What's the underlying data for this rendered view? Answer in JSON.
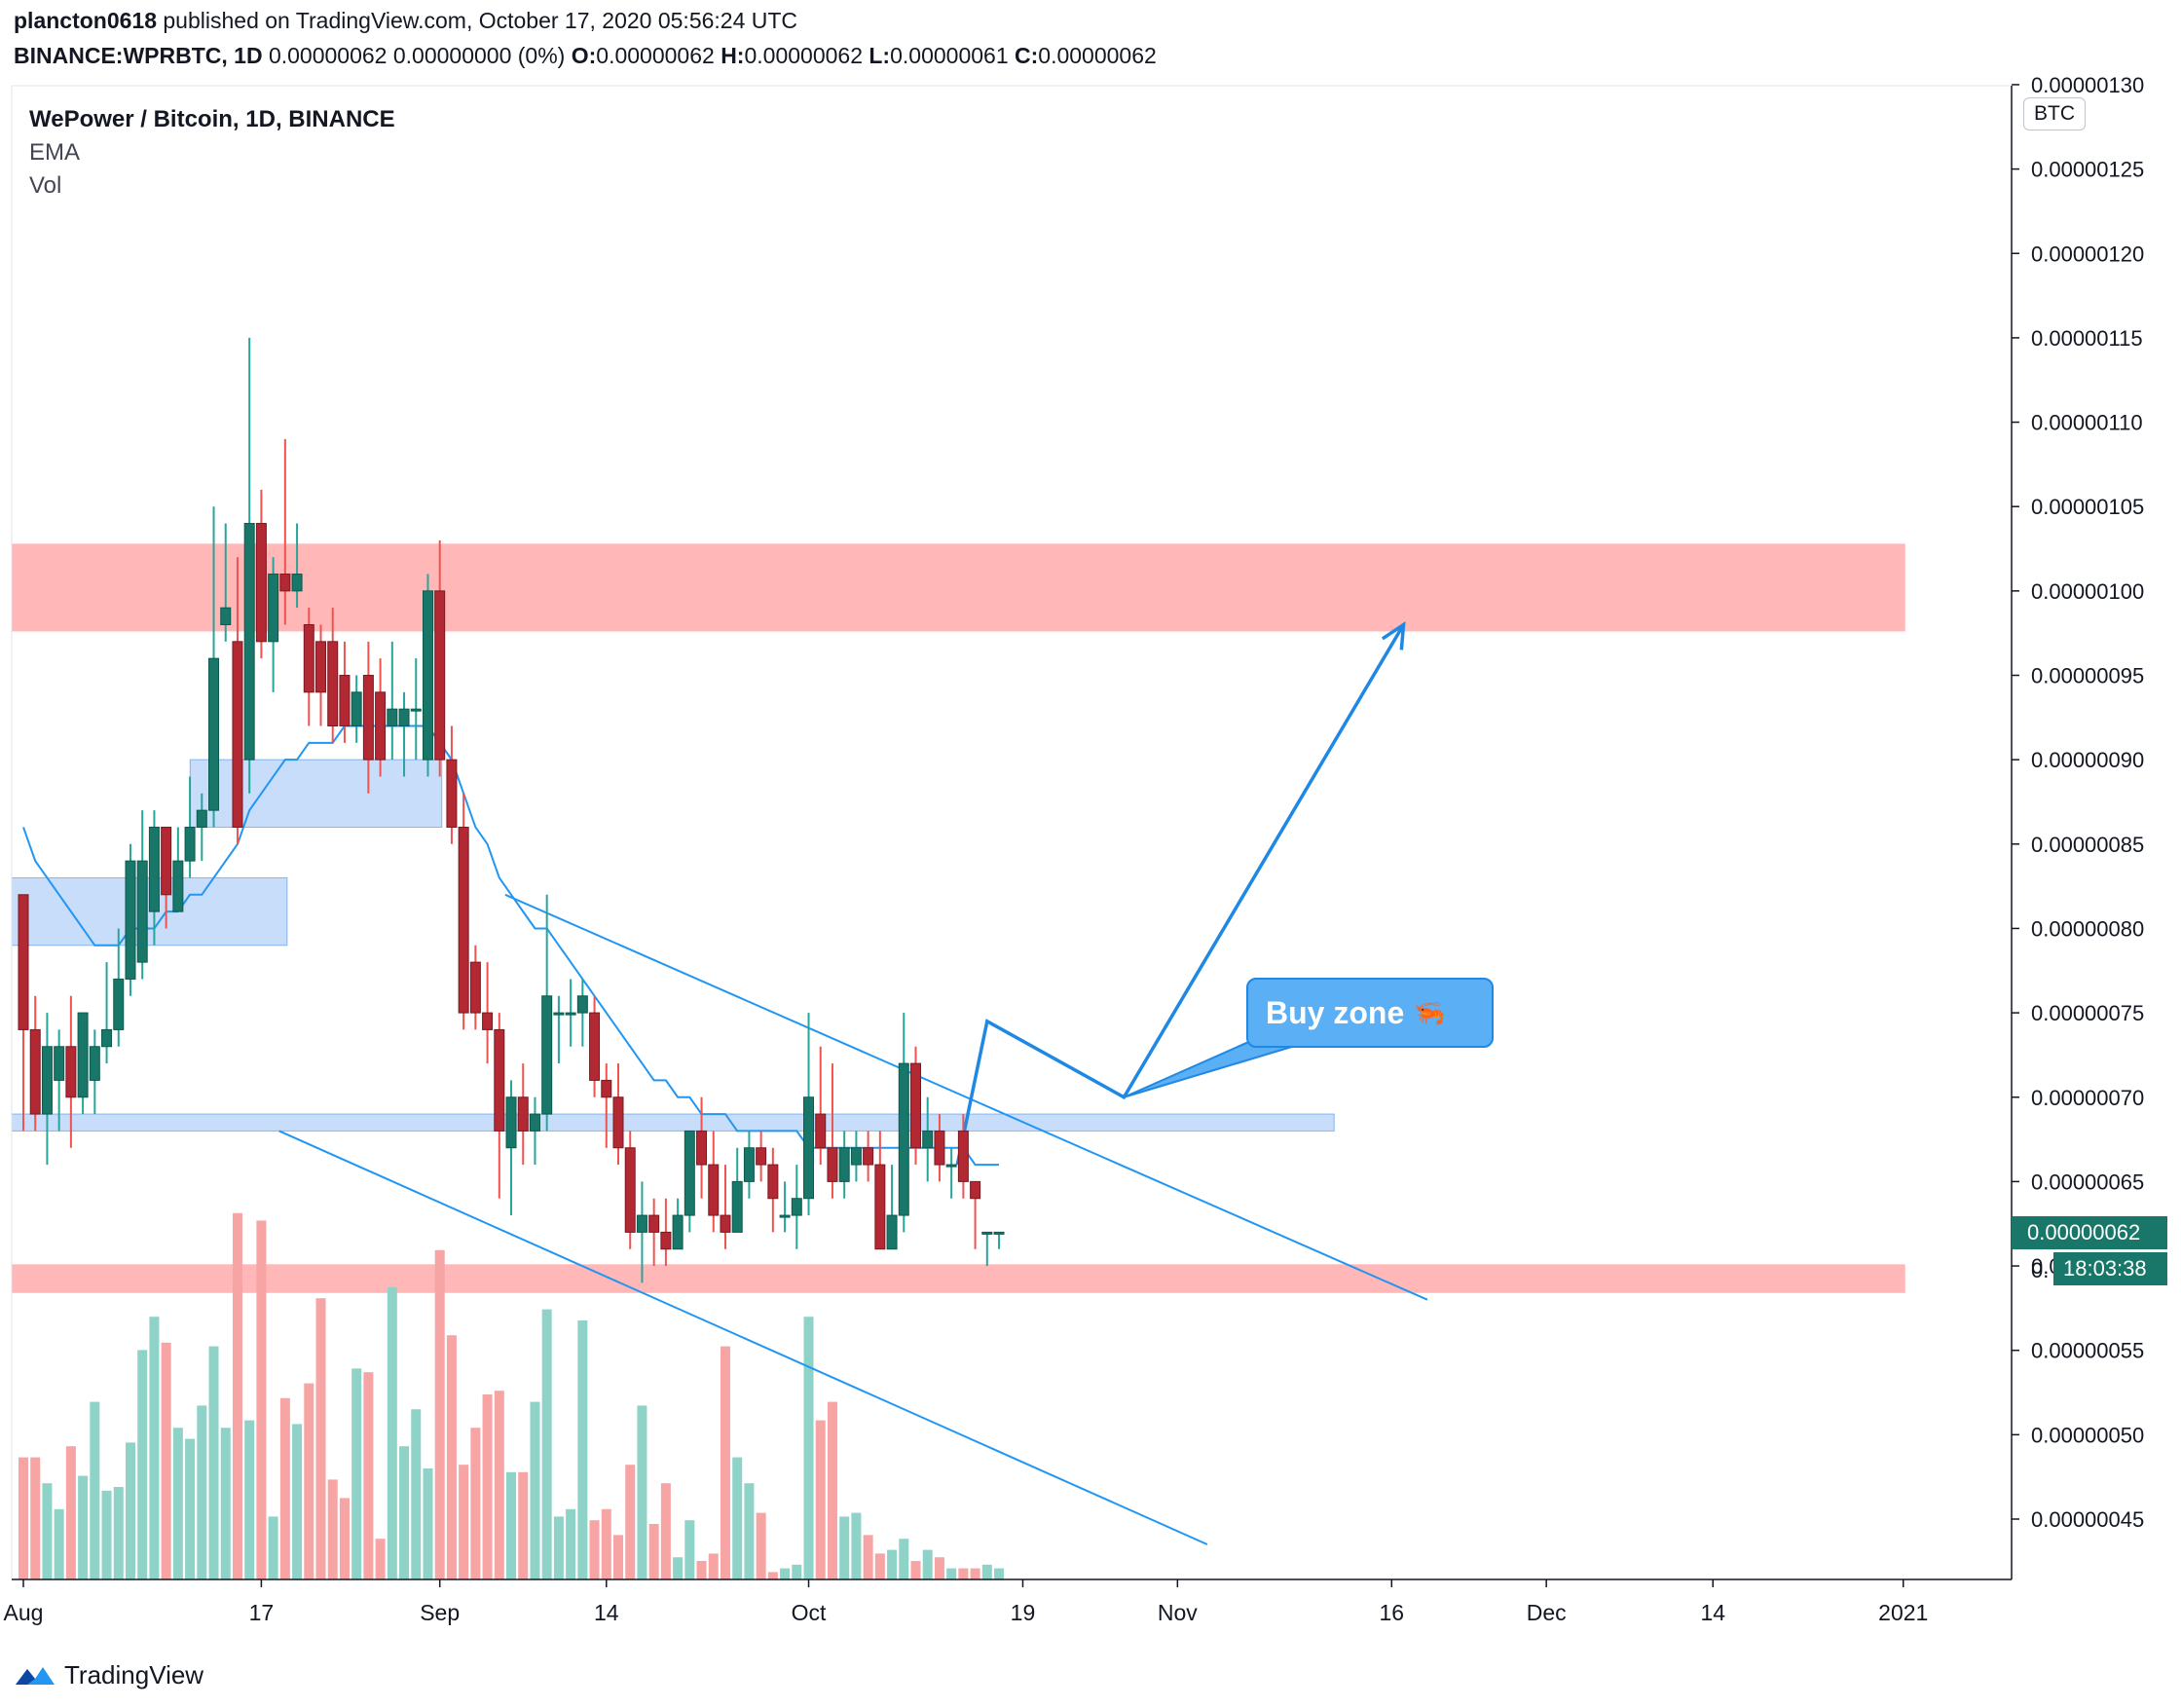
{
  "header": {
    "author": "plancton0618",
    "published_text": "published on TradingView.com, October 17, 2020 05:56:24 UTC",
    "symbol": "BINANCE:WPRBTC, 1D",
    "quote": "0.00000062 0.00000000 (0%)",
    "o_label": "O:",
    "o_value": "0.00000062",
    "h_label": "H:",
    "h_value": "0.00000062",
    "l_label": "L:",
    "l_value": "0.00000061",
    "c_label": "C:",
    "c_value": "0.00000062"
  },
  "legend": {
    "title": "WePower / Bitcoin, 1D, BINANCE",
    "indicator1": "EMA",
    "indicator2": "Vol"
  },
  "price_scale": {
    "currency": "BTC",
    "current_price": "0.00000062",
    "countdown": "18:03:38",
    "countdown_prefix": "0."
  },
  "annotation": {
    "callout_text": "Buy zone",
    "callout_icon": "shrimp-icon"
  },
  "footer": {
    "brand": "TradingView",
    "icon": "tradingview-logo-icon"
  },
  "colors": {
    "up": "#26a69a",
    "down": "#ef5350",
    "up_fill": "#187768",
    "down_fill": "#b22833",
    "ema": "#2196f3",
    "resistance_zone": "#ffb3b3",
    "support_zone": "#c6dcfa",
    "vol_up": "#8fd3c8",
    "vol_down": "#f6a4a4"
  },
  "chart_data": {
    "type": "candlestick",
    "title": "WePower / Bitcoin, 1D, BINANCE",
    "ylim": [
      4.2e-07,
      1.3e-06
    ],
    "y_ticks": [
      "0.00000045",
      "0.00000050",
      "0.00000055",
      "0.00000060",
      "0.00000065",
      "0.00000070",
      "0.00000075",
      "0.00000080",
      "0.00000085",
      "0.00000090",
      "0.00000095",
      "0.00000100",
      "0.00000105",
      "0.00000110",
      "0.00000115",
      "0.00000120",
      "0.00000125",
      "0.00000130"
    ],
    "x_ticks": [
      "Aug",
      "17",
      "Sep",
      "14",
      "Oct",
      "19",
      "Nov",
      "16",
      "Dec",
      "14",
      "2021"
    ],
    "x_tick_days": [
      0,
      20,
      35,
      49,
      66,
      84,
      97,
      115,
      128,
      142,
      158
    ],
    "candles_start": "2020-07-30",
    "candles": [
      [
        8.2e-07,
        8.2e-07,
        6.8e-07,
        7.4e-07
      ],
      [
        7.4e-07,
        7.6e-07,
        6.8e-07,
        6.9e-07
      ],
      [
        6.9e-07,
        7.5e-07,
        6.6e-07,
        7.3e-07
      ],
      [
        7.1e-07,
        7.4e-07,
        6.8e-07,
        7.3e-07
      ],
      [
        7.3e-07,
        7.6e-07,
        6.7e-07,
        7e-07
      ],
      [
        7e-07,
        7.5e-07,
        6.9e-07,
        7.5e-07
      ],
      [
        7.1e-07,
        7.4e-07,
        6.9e-07,
        7.3e-07
      ],
      [
        7.3e-07,
        7.8e-07,
        7.2e-07,
        7.4e-07
      ],
      [
        7.4e-07,
        8e-07,
        7.3e-07,
        7.7e-07
      ],
      [
        7.7e-07,
        8.5e-07,
        7.6e-07,
        8.4e-07
      ],
      [
        7.8e-07,
        8.7e-07,
        7.7e-07,
        8.4e-07
      ],
      [
        8.1e-07,
        8.7e-07,
        7.9e-07,
        8.6e-07
      ],
      [
        8.6e-07,
        8.6e-07,
        8e-07,
        8.2e-07
      ],
      [
        8.1e-07,
        8.6e-07,
        8.1e-07,
        8.4e-07
      ],
      [
        8.4e-07,
        8.9e-07,
        8.3e-07,
        8.6e-07
      ],
      [
        8.6e-07,
        8.8e-07,
        8.4e-07,
        8.7e-07
      ],
      [
        8.7e-07,
        1.05e-06,
        8.6e-07,
        9.6e-07
      ],
      [
        9.8e-07,
        1.04e-06,
        9.7e-07,
        9.9e-07
      ],
      [
        9.7e-07,
        1.02e-06,
        8.5e-07,
        8.6e-07
      ],
      [
        9e-07,
        1.15e-06,
        8.8e-07,
        1.04e-06
      ],
      [
        1.04e-06,
        1.06e-06,
        9.6e-07,
        9.7e-07
      ],
      [
        9.7e-07,
        1.02e-06,
        9.4e-07,
        1.01e-06
      ],
      [
        1.01e-06,
        1.09e-06,
        9.8e-07,
        1e-06
      ],
      [
        1e-06,
        1.04e-06,
        9.9e-07,
        1.01e-06
      ],
      [
        9.8e-07,
        9.9e-07,
        9.2e-07,
        9.4e-07
      ],
      [
        9.7e-07,
        9.8e-07,
        9.2e-07,
        9.4e-07
      ],
      [
        9.7e-07,
        9.9e-07,
        9.1e-07,
        9.2e-07
      ],
      [
        9.5e-07,
        9.7e-07,
        9.1e-07,
        9.2e-07
      ],
      [
        9.2e-07,
        9.5e-07,
        9.1e-07,
        9.4e-07
      ],
      [
        9.5e-07,
        9.7e-07,
        8.8e-07,
        9e-07
      ],
      [
        9.4e-07,
        9.6e-07,
        8.9e-07,
        9e-07
      ],
      [
        9.2e-07,
        9.7e-07,
        9e-07,
        9.3e-07
      ],
      [
        9.2e-07,
        9.4e-07,
        8.9e-07,
        9.3e-07
      ],
      [
        9.3e-07,
        9.6e-07,
        9e-07,
        9.3e-07
      ],
      [
        9e-07,
        1.01e-06,
        8.9e-07,
        1e-06
      ],
      [
        1e-06,
        1.03e-06,
        8.9e-07,
        9e-07
      ],
      [
        9e-07,
        9.2e-07,
        8.5e-07,
        8.6e-07
      ],
      [
        8.6e-07,
        8.8e-07,
        7.4e-07,
        7.5e-07
      ],
      [
        7.8e-07,
        7.9e-07,
        7.4e-07,
        7.5e-07
      ],
      [
        7.5e-07,
        7.8e-07,
        7.2e-07,
        7.4e-07
      ],
      [
        7.4e-07,
        7.5e-07,
        6.4e-07,
        6.8e-07
      ],
      [
        6.7e-07,
        7.1e-07,
        6.3e-07,
        7e-07
      ],
      [
        7e-07,
        7.2e-07,
        6.6e-07,
        6.8e-07
      ],
      [
        6.8e-07,
        7e-07,
        6.6e-07,
        6.9e-07
      ],
      [
        6.9e-07,
        8.2e-07,
        6.8e-07,
        7.6e-07
      ],
      [
        7.5e-07,
        7.6e-07,
        7.2e-07,
        7.5e-07
      ],
      [
        7.5e-07,
        7.7e-07,
        7.3e-07,
        7.5e-07
      ],
      [
        7.5e-07,
        7.7e-07,
        7.3e-07,
        7.6e-07
      ],
      [
        7.5e-07,
        7.6e-07,
        7e-07,
        7.1e-07
      ],
      [
        7.1e-07,
        7.2e-07,
        6.7e-07,
        7e-07
      ],
      [
        7e-07,
        7.2e-07,
        6.6e-07,
        6.7e-07
      ],
      [
        6.7e-07,
        6.8e-07,
        6.1e-07,
        6.2e-07
      ],
      [
        6.2e-07,
        6.5e-07,
        5.9e-07,
        6.3e-07
      ],
      [
        6.3e-07,
        6.4e-07,
        6e-07,
        6.2e-07
      ],
      [
        6.2e-07,
        6.4e-07,
        6e-07,
        6.1e-07
      ],
      [
        6.1e-07,
        6.4e-07,
        6.1e-07,
        6.3e-07
      ],
      [
        6.3e-07,
        6.8e-07,
        6.2e-07,
        6.8e-07
      ],
      [
        6.8e-07,
        7e-07,
        6.4e-07,
        6.6e-07
      ],
      [
        6.6e-07,
        6.8e-07,
        6.2e-07,
        6.3e-07
      ],
      [
        6.3e-07,
        6.6e-07,
        6.1e-07,
        6.2e-07
      ],
      [
        6.2e-07,
        6.7e-07,
        6.2e-07,
        6.5e-07
      ],
      [
        6.5e-07,
        6.8e-07,
        6.4e-07,
        6.7e-07
      ],
      [
        6.7e-07,
        6.8e-07,
        6.5e-07,
        6.6e-07
      ],
      [
        6.6e-07,
        6.7e-07,
        6.2e-07,
        6.4e-07
      ],
      [
        6.3e-07,
        6.5e-07,
        6.2e-07,
        6.3e-07
      ],
      [
        6.3e-07,
        6.6e-07,
        6.1e-07,
        6.4e-07
      ],
      [
        6.4e-07,
        7.5e-07,
        6.3e-07,
        7e-07
      ],
      [
        6.9e-07,
        7.3e-07,
        6.6e-07,
        6.7e-07
      ],
      [
        6.7e-07,
        7.2e-07,
        6.4e-07,
        6.5e-07
      ],
      [
        6.5e-07,
        6.8e-07,
        6.4e-07,
        6.7e-07
      ],
      [
        6.6e-07,
        6.8e-07,
        6.5e-07,
        6.7e-07
      ],
      [
        6.7e-07,
        6.8e-07,
        6.5e-07,
        6.6e-07
      ],
      [
        6.6e-07,
        6.8e-07,
        6.1e-07,
        6.1e-07
      ],
      [
        6.1e-07,
        6.6e-07,
        6.1e-07,
        6.3e-07
      ],
      [
        6.3e-07,
        7.5e-07,
        6.2e-07,
        7.2e-07
      ],
      [
        7.2e-07,
        7.3e-07,
        6.6e-07,
        6.7e-07
      ],
      [
        6.7e-07,
        7e-07,
        6.5e-07,
        6.8e-07
      ],
      [
        6.8e-07,
        6.9e-07,
        6.5e-07,
        6.6e-07
      ],
      [
        6.6e-07,
        6.7e-07,
        6.4e-07,
        6.6e-07
      ],
      [
        6.8e-07,
        6.9e-07,
        6.4e-07,
        6.5e-07
      ],
      [
        6.5e-07,
        6.5e-07,
        6.1e-07,
        6.4e-07
      ],
      [
        6.2e-07,
        6.2e-07,
        6e-07,
        6.2e-07
      ],
      [
        6.2e-07,
        6.2e-07,
        6.1e-07,
        6.2e-07
      ]
    ],
    "volume": [
      0.33,
      0.33,
      0.26,
      0.19,
      0.36,
      0.28,
      0.48,
      0.24,
      0.25,
      0.37,
      0.62,
      0.71,
      0.64,
      0.41,
      0.38,
      0.47,
      0.63,
      0.41,
      0.99,
      0.43,
      0.97,
      0.17,
      0.49,
      0.42,
      0.53,
      0.76,
      0.27,
      0.22,
      0.57,
      0.56,
      0.11,
      0.79,
      0.36,
      0.46,
      0.3,
      0.89,
      0.66,
      0.31,
      0.41,
      0.5,
      0.51,
      0.29,
      0.29,
      0.48,
      0.73,
      0.17,
      0.19,
      0.7,
      0.16,
      0.19,
      0.12,
      0.31,
      0.47,
      0.15,
      0.26,
      0.06,
      0.16,
      0.05,
      0.07,
      0.63,
      0.33,
      0.26,
      0.18,
      0.02,
      0.03,
      0.04,
      0.71,
      0.43,
      0.48,
      0.17,
      0.18,
      0.12,
      0.07,
      0.08,
      0.11,
      0.05,
      0.08,
      0.06,
      0.03,
      0.03,
      0.03,
      0.04,
      0.03
    ],
    "ema": [
      8.6e-07,
      8.4e-07,
      8.3e-07,
      8.2e-07,
      8.1e-07,
      8e-07,
      7.9e-07,
      7.9e-07,
      7.9e-07,
      8e-07,
      8e-07,
      8e-07,
      8.1e-07,
      8.1e-07,
      8.2e-07,
      8.2e-07,
      8.3e-07,
      8.4e-07,
      8.5e-07,
      8.7e-07,
      8.8e-07,
      8.9e-07,
      9e-07,
      9e-07,
      9.1e-07,
      9.1e-07,
      9.1e-07,
      9.2e-07,
      9.2e-07,
      9.2e-07,
      9.2e-07,
      9.2e-07,
      9.2e-07,
      9.2e-07,
      9.2e-07,
      9.1e-07,
      9e-07,
      8.8e-07,
      8.6e-07,
      8.5e-07,
      8.3e-07,
      8.2e-07,
      8.1e-07,
      8e-07,
      8e-07,
      7.9e-07,
      7.8e-07,
      7.7e-07,
      7.6e-07,
      7.5e-07,
      7.4e-07,
      7.3e-07,
      7.2e-07,
      7.1e-07,
      7.1e-07,
      7e-07,
      7e-07,
      6.9e-07,
      6.9e-07,
      6.9e-07,
      6.8e-07,
      6.8e-07,
      6.8e-07,
      6.8e-07,
      6.8e-07,
      6.8e-07,
      6.7e-07,
      6.7e-07,
      6.7e-07,
      6.7e-07,
      6.7e-07,
      6.7e-07,
      6.7e-07,
      6.7e-07,
      6.7e-07,
      6.7e-07,
      6.7e-07,
      6.7e-07,
      6.7e-07,
      6.7e-07,
      6.6e-07,
      6.6e-07,
      6.6e-07
    ],
    "zones": [
      {
        "kind": "resistance",
        "y_low": 9.76e-07,
        "y_high": 1.028e-06,
        "start_day": 0,
        "end_day": 158
      },
      {
        "kind": "support",
        "y_low": 5.84e-07,
        "y_high": 6.01e-07,
        "start_day": 0,
        "end_day": 158
      },
      {
        "kind": "demand",
        "y_low": 8.6e-07,
        "y_high": 9e-07,
        "start_day": 15,
        "end_day": 35
      },
      {
        "kind": "demand",
        "y_low": 7.9e-07,
        "y_high": 8.3e-07,
        "start_day": 0,
        "end_day": 22
      },
      {
        "kind": "demand",
        "y_low": 6.8e-07,
        "y_high": 6.9e-07,
        "start_day": 0,
        "end_day": 110
      }
    ],
    "trendlines": [
      {
        "name": "upper",
        "d1": 40.5,
        "y1": 8.2e-07,
        "d2": 118,
        "y2": 5.8e-07
      },
      {
        "name": "lower",
        "d1": 21.5,
        "y1": 6.8e-07,
        "d2": 99.5,
        "y2": 4.35e-07
      }
    ],
    "projection": [
      [
        78.5,
        6.6e-07
      ],
      [
        81,
        7.45e-07
      ],
      [
        92.5,
        7e-07
      ],
      [
        116,
        9.8e-07
      ]
    ]
  }
}
